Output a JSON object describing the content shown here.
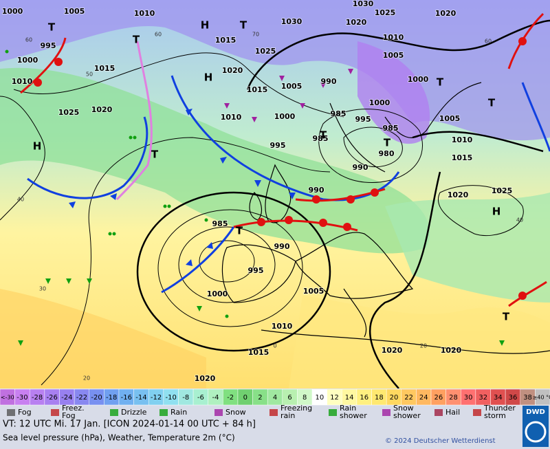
{
  "map": {
    "pressure_labels": [
      1000,
      1005,
      1010,
      1030,
      1025,
      1020,
      995,
      1000,
      1010,
      1015,
      1025,
      1020,
      1015,
      1025,
      1030,
      1020,
      1010,
      1005,
      1020,
      1015,
      1005,
      990,
      1000,
      1000,
      985,
      995,
      1010,
      1000,
      985,
      1005,
      995,
      985,
      980,
      1010,
      990,
      1015,
      990,
      1020,
      1025,
      985,
      990,
      995,
      1000,
      1005,
      1010,
      1015,
      1020,
      1020,
      1020
    ],
    "centers": [
      "H",
      "T",
      "H",
      "T",
      "T",
      "H",
      "T",
      "T",
      "T",
      "T",
      "T",
      "T",
      "H",
      "T"
    ],
    "isotherm_labels": [
      60,
      50,
      60,
      70,
      60,
      40,
      40,
      30,
      20,
      0,
      20
    ]
  },
  "colorbar": {
    "labels": [
      "<-30",
      -30,
      -28,
      -26,
      -24,
      -22,
      -20,
      -18,
      -16,
      -14,
      -12,
      -10,
      -8,
      -6,
      -4,
      -2,
      0,
      2,
      4,
      6,
      8,
      10,
      12,
      14,
      16,
      18,
      20,
      22,
      24,
      26,
      28,
      30,
      32,
      34,
      36,
      38,
      "≥40 °C"
    ],
    "colors": [
      "#c070e0",
      "#c880f0",
      "#b880f0",
      "#a880f0",
      "#9880f0",
      "#8888f0",
      "#7890f0",
      "#70a0f0",
      "#70b0f0",
      "#78c0f0",
      "#80d0f0",
      "#90e0f0",
      "#a0e8e0",
      "#a8f0d0",
      "#b0f0c0",
      "#80e080",
      "#70d070",
      "#88e088",
      "#a0e8a0",
      "#b8f0b0",
      "#d0f8c8",
      "#ffffff",
      "#ffffc0",
      "#fff8a0",
      "#fff080",
      "#ffe870",
      "#ffd860",
      "#ffc860",
      "#ffb860",
      "#ffa060",
      "#ff9070",
      "#ff7070",
      "#f06060",
      "#e05050",
      "#d04848",
      "#c09080",
      "#c0c0c0"
    ]
  },
  "legend": {
    "items": [
      {
        "label": [
          "Fog"
        ]
      },
      {
        "label": [
          "Freez.",
          "Fog"
        ]
      },
      {
        "label": [
          "Drizzle"
        ]
      },
      {
        "label": [
          "Rain"
        ]
      },
      {
        "label": [
          "Snow"
        ]
      },
      {
        "label": [
          "Freezing",
          "rain"
        ]
      },
      {
        "label": [
          "Rain",
          "shower"
        ]
      },
      {
        "label": [
          "Snow",
          "shower"
        ]
      },
      {
        "label": [
          "Hail"
        ]
      },
      {
        "label": [
          "Thunder",
          "storm"
        ]
      }
    ]
  },
  "footer": {
    "valid_time": "VT: 12 UTC Mi.   17 Jan. [ICON 2024-01-14  00 UTC + 84 h]",
    "description": "Sea level pressure (hPa), Weather, Temperature 2m (°C)",
    "copyright": "© 2024 Deutscher Wetterdienst",
    "logo": "DWD"
  }
}
